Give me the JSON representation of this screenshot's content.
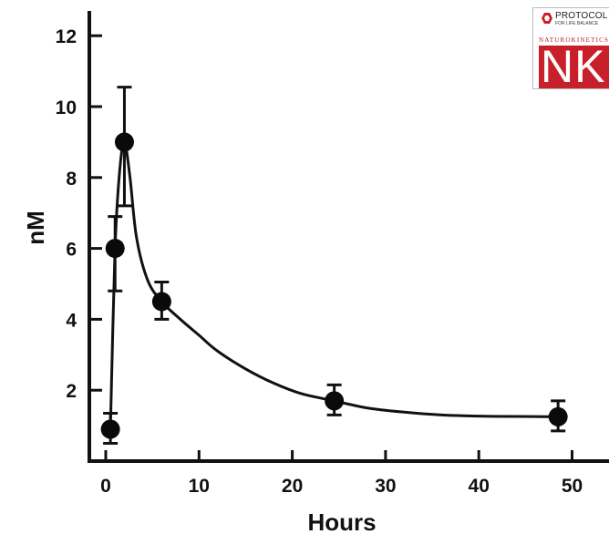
{
  "chart_data": {
    "type": "scatter",
    "xlabel": "Hours",
    "ylabel": "nM",
    "xlim": [
      -1.5,
      52
    ],
    "ylim": [
      0,
      12.7
    ],
    "x_ticks": [
      0,
      10,
      20,
      30,
      40,
      50
    ],
    "y_ticks": [
      2,
      4,
      6,
      8,
      10,
      12
    ],
    "grid": false,
    "series": [
      {
        "points": [
          {
            "x": 0.5,
            "y": 0.9,
            "err_low": 0.5,
            "err_high": 1.35
          },
          {
            "x": 1.0,
            "y": 6.0,
            "err_low": 4.8,
            "err_high": 6.9
          },
          {
            "x": 2.0,
            "y": 9.0,
            "err_low": 7.2,
            "err_high": 10.55
          },
          {
            "x": 6.0,
            "y": 4.5,
            "err_low": 4.0,
            "err_high": 5.05
          },
          {
            "x": 24.5,
            "y": 1.7,
            "err_low": 1.3,
            "err_high": 2.15
          },
          {
            "x": 48.5,
            "y": 1.25,
            "err_low": 0.85,
            "err_high": 1.7
          }
        ],
        "fit_curve": [
          [
            0.5,
            0.9
          ],
          [
            1.0,
            6.0
          ],
          [
            1.5,
            8.2
          ],
          [
            2.0,
            9.0
          ],
          [
            2.6,
            8.0
          ],
          [
            3.3,
            6.3
          ],
          [
            4.5,
            5.1
          ],
          [
            6.0,
            4.5
          ],
          [
            8,
            4.0
          ],
          [
            10,
            3.55
          ],
          [
            12,
            3.1
          ],
          [
            15,
            2.6
          ],
          [
            18,
            2.2
          ],
          [
            21,
            1.9
          ],
          [
            24.5,
            1.7
          ],
          [
            28,
            1.5
          ],
          [
            32,
            1.38
          ],
          [
            36,
            1.3
          ],
          [
            40,
            1.27
          ],
          [
            44,
            1.26
          ],
          [
            48.5,
            1.25
          ]
        ]
      }
    ]
  },
  "logo": {
    "name": "PROTOCOL",
    "tagline": "FOR LIFE BALANCE",
    "sub": "NATUROKINETICS",
    "letters": "NK",
    "brand_color": "#c8202a"
  }
}
